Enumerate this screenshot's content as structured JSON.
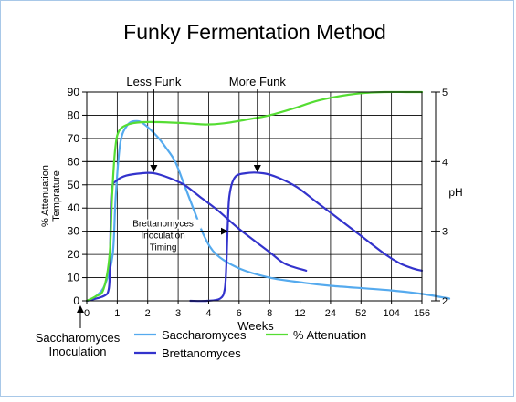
{
  "chart_data": {
    "type": "line",
    "title": "Funky Fermentation Method",
    "xlabel": "Weeks",
    "ylabel_left_line1": "% Attenuation",
    "ylabel_left_line2": "Temprature",
    "ylabel_right": "pH",
    "x_ticks": [
      "0",
      "1",
      "2",
      "3",
      "4",
      "6",
      "8",
      "12",
      "24",
      "52",
      "104",
      "156"
    ],
    "y_left_ticks": [
      0,
      10,
      20,
      30,
      40,
      50,
      60,
      70,
      80,
      90
    ],
    "y_left_range": [
      0,
      90
    ],
    "y_right_ticks": [
      2,
      3,
      4,
      5
    ],
    "y_right_range": [
      2,
      5
    ],
    "grid": true,
    "colors": {
      "saccharomyces": "#55aaee",
      "brettanomyces": "#3333cc",
      "attenuation": "#55dd33"
    },
    "series": [
      {
        "name": "Saccharomyces",
        "key": "saccharomyces",
        "axis": "left",
        "points": [
          [
            0,
            0
          ],
          [
            0.3,
            2
          ],
          [
            0.6,
            7
          ],
          [
            0.85,
            20
          ],
          [
            0.95,
            45
          ],
          [
            1.1,
            68
          ],
          [
            1.35,
            76
          ],
          [
            1.65,
            77.5
          ],
          [
            1.9,
            76
          ],
          [
            2.3,
            71
          ],
          [
            2.6,
            66
          ],
          [
            2.9,
            60
          ],
          [
            3.2,
            50
          ],
          [
            3.55,
            38
          ],
          [
            3.85,
            28
          ],
          [
            4.25,
            20
          ],
          [
            5,
            14
          ],
          [
            6,
            10
          ],
          [
            7,
            8
          ],
          [
            8,
            6.5
          ],
          [
            10,
            4.5
          ],
          [
            11,
            3
          ],
          [
            11.9,
            1
          ]
        ]
      },
      {
        "name": "Brettanomyces",
        "key": "brettanomyces",
        "axis": "left",
        "segments": [
          [
            [
              0,
              0
            ],
            [
              0.55,
              2
            ],
            [
              0.72,
              5
            ],
            [
              0.76,
              15
            ],
            [
              0.78,
              30
            ],
            [
              0.82,
              48
            ],
            [
              1,
              52
            ],
            [
              1.3,
              54
            ],
            [
              1.8,
              55
            ],
            [
              2.2,
              55
            ],
            [
              2.7,
              53
            ],
            [
              3.2,
              50
            ],
            [
              3.7,
              45
            ],
            [
              4.3,
              39
            ],
            [
              5,
              31
            ],
            [
              6,
              21
            ],
            [
              6.5,
              16
            ],
            [
              7.2,
              13
            ]
          ],
          [
            [
              3.4,
              0
            ],
            [
              3.95,
              0
            ],
            [
              4.38,
              1
            ],
            [
              4.53,
              5
            ],
            [
              4.58,
              15
            ],
            [
              4.62,
              30
            ],
            [
              4.68,
              45
            ],
            [
              4.85,
              53
            ],
            [
              5.2,
              55
            ],
            [
              5.8,
              55
            ],
            [
              6.3,
              53
            ],
            [
              6.9,
              49
            ],
            [
              7.5,
              43
            ],
            [
              8.2,
              36
            ],
            [
              9,
              28
            ],
            [
              9.8,
              20
            ],
            [
              10.3,
              16
            ],
            [
              10.7,
              14
            ],
            [
              11,
              13
            ]
          ]
        ]
      },
      {
        "name": "% Attenuation",
        "key": "attenuation",
        "axis": "left",
        "points": [
          [
            0,
            0
          ],
          [
            0.3,
            2
          ],
          [
            0.55,
            5
          ],
          [
            0.75,
            20
          ],
          [
            0.83,
            45
          ],
          [
            0.93,
            65
          ],
          [
            1.05,
            73
          ],
          [
            1.35,
            76
          ],
          [
            1.8,
            77
          ],
          [
            2.5,
            77
          ],
          [
            3.3,
            76.5
          ],
          [
            3.9,
            76
          ],
          [
            4.5,
            76.5
          ],
          [
            5.2,
            78
          ],
          [
            6,
            80
          ],
          [
            6.8,
            83
          ],
          [
            7.5,
            86
          ],
          [
            8.2,
            88
          ],
          [
            9,
            89.5
          ],
          [
            9.8,
            90
          ],
          [
            10.5,
            90
          ],
          [
            11,
            90
          ]
        ]
      }
    ],
    "annotations": {
      "less_funk": {
        "label": "Less Funk",
        "target_x": 2.2,
        "target_y": 55
      },
      "more_funk": {
        "label": "More Funk",
        "target_x": 5.6,
        "target_y": 55
      },
      "inoculation_timing": {
        "label_lines": [
          "Brettanomyces",
          "Inoculation",
          "Timing"
        ],
        "y": 30,
        "x_start": 0.1,
        "x_end": 4.55
      },
      "sacch_inoculation": {
        "label_lines": [
          "Saccharomyces",
          "Inoculation"
        ],
        "x": 0
      }
    },
    "legend": {
      "placement": "bottom",
      "items": [
        {
          "label": "Saccharomyces",
          "key": "saccharomyces"
        },
        {
          "label": "% Attenuation",
          "key": "attenuation"
        },
        {
          "label": "Brettanomyces",
          "key": "brettanomyces"
        }
      ]
    }
  }
}
